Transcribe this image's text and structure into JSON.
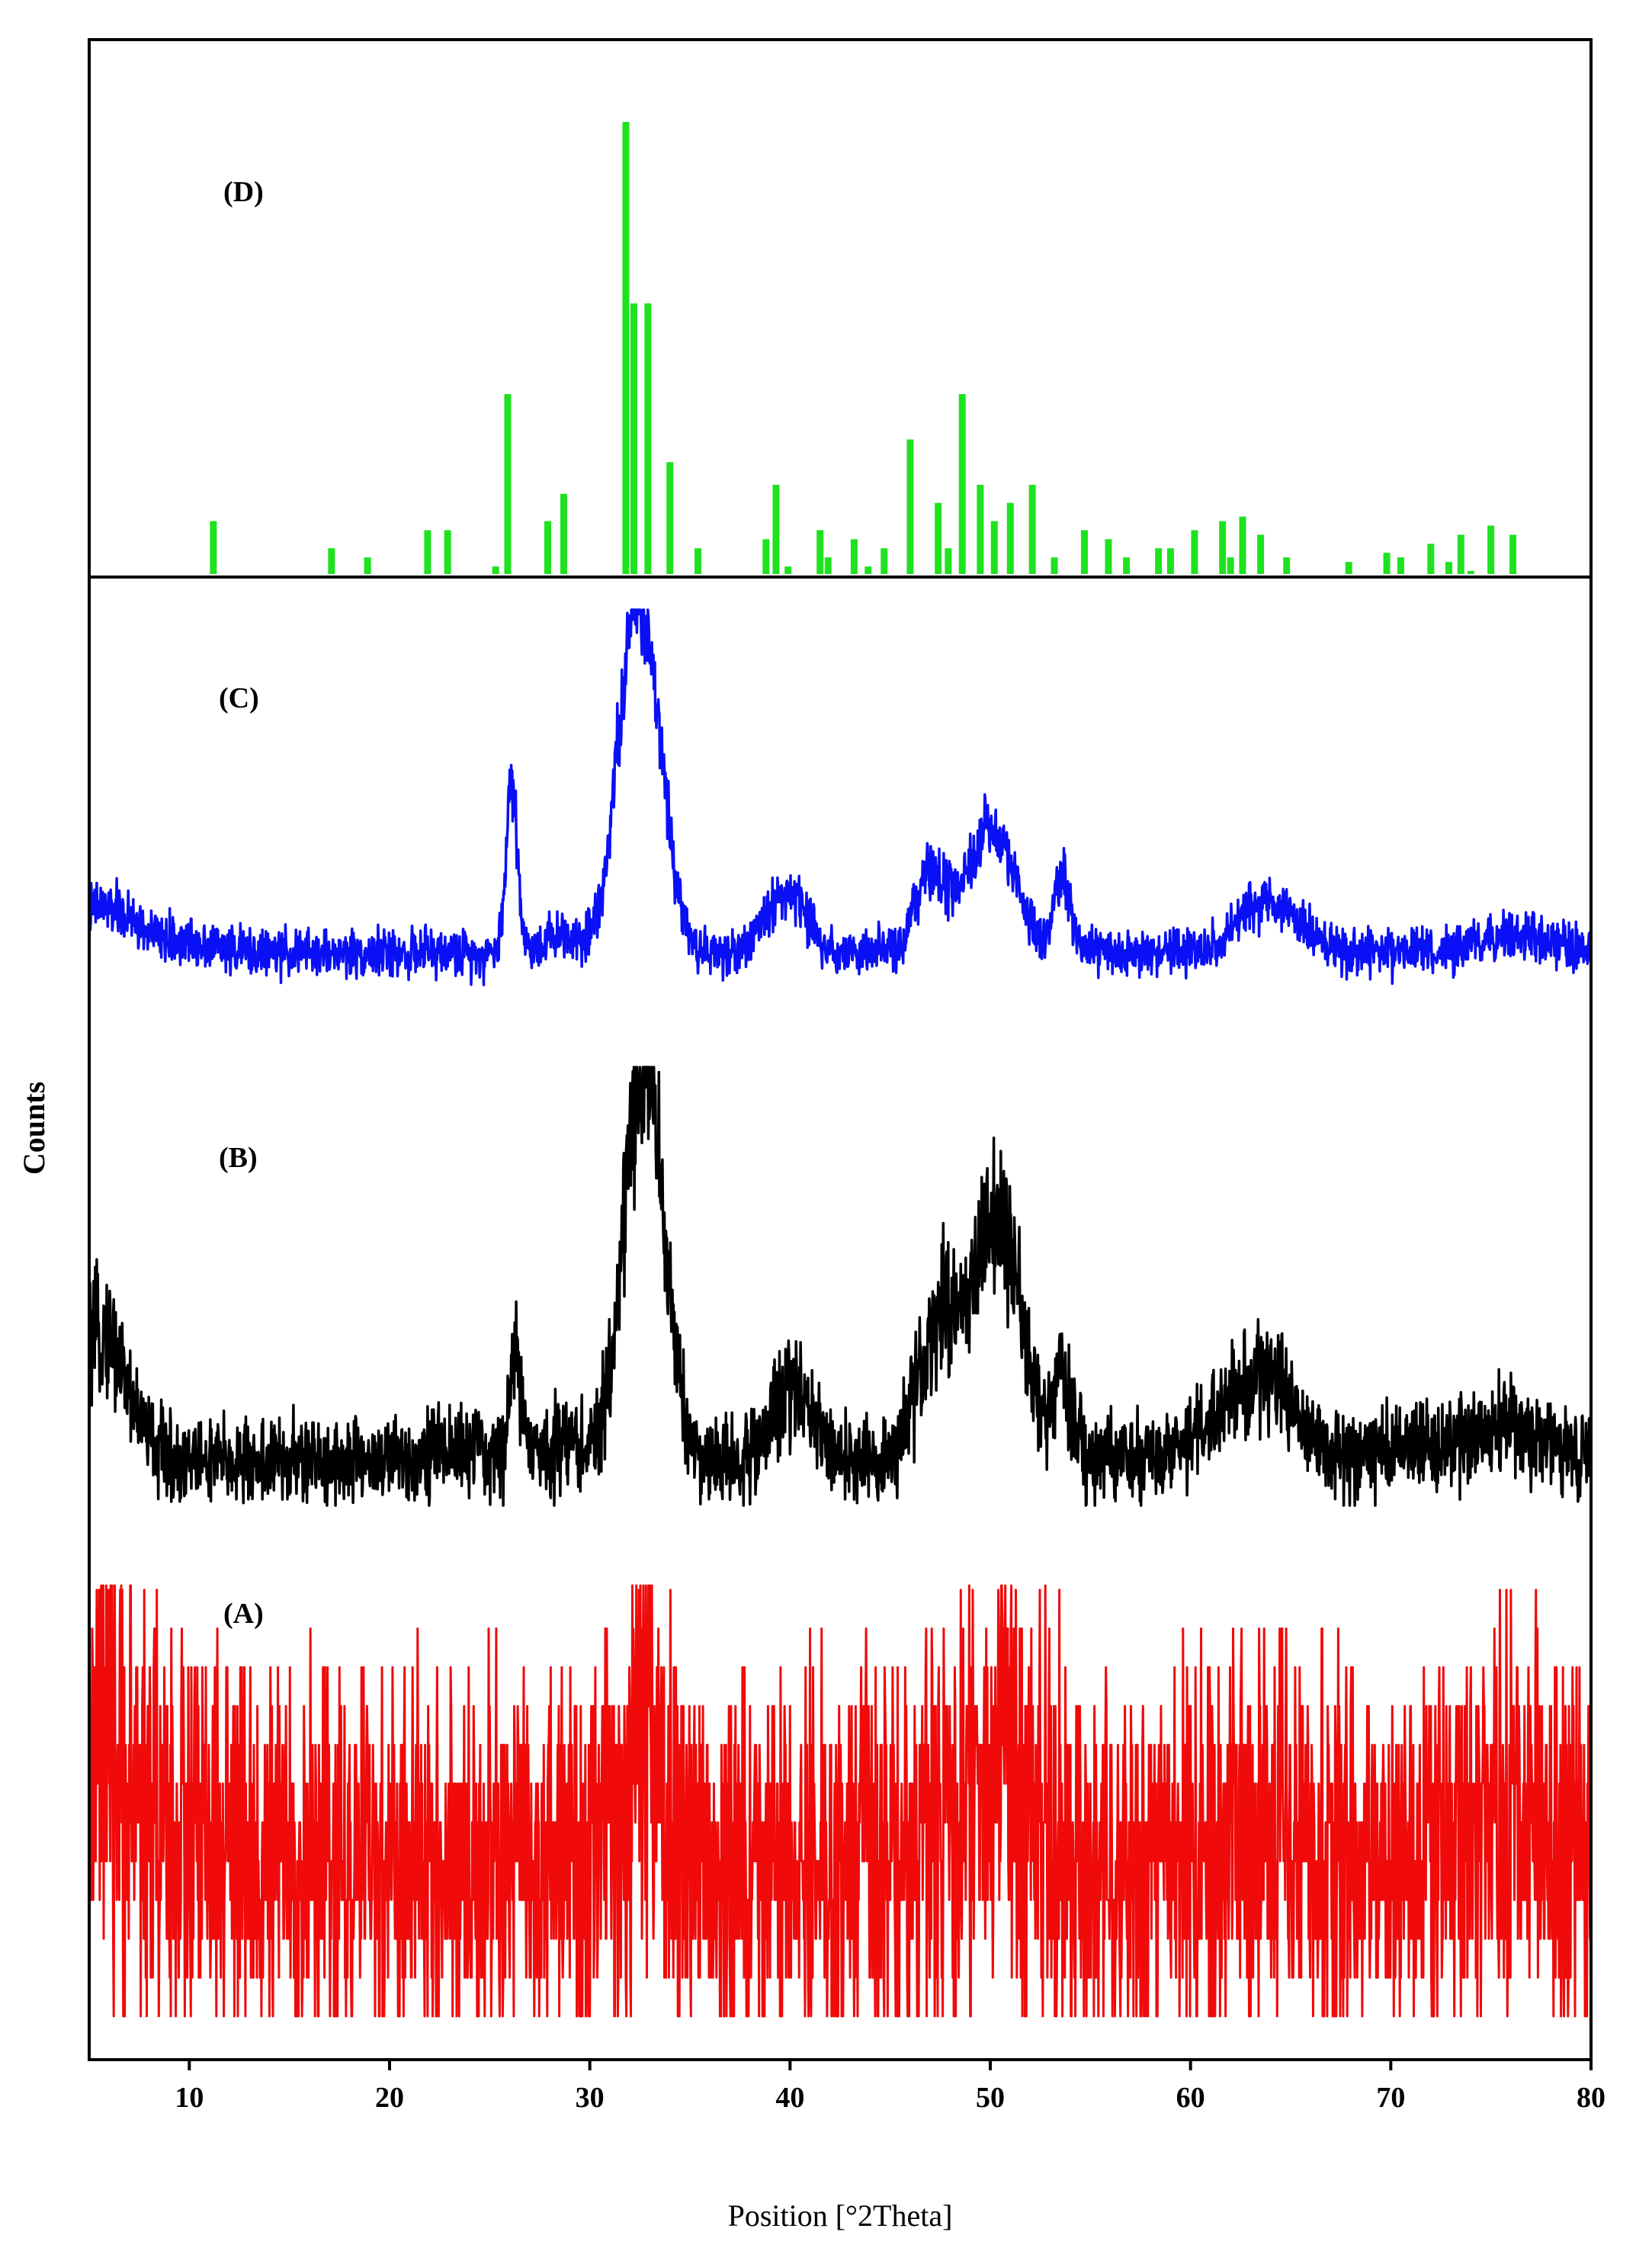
{
  "chart_data": {
    "type": "line",
    "xlabel": "Position [°2Theta]",
    "ylabel": "Counts",
    "xlim": [
      5,
      80
    ],
    "xticks": [
      10,
      20,
      30,
      40,
      50,
      60,
      70,
      80
    ],
    "grid": false,
    "legend": "none",
    "panels": [
      {
        "label": "(D)",
        "kind": "stick",
        "color": "#1fe21f",
        "ylim": [
          0,
          100
        ],
        "sticks": [
          {
            "x": 11.2,
            "y": 12
          },
          {
            "x": 17.1,
            "y": 6
          },
          {
            "x": 18.9,
            "y": 4
          },
          {
            "x": 21.9,
            "y": 10
          },
          {
            "x": 22.9,
            "y": 10
          },
          {
            "x": 25.3,
            "y": 2
          },
          {
            "x": 25.9,
            "y": 40
          },
          {
            "x": 27.9,
            "y": 12
          },
          {
            "x": 28.7,
            "y": 18
          },
          {
            "x": 31.8,
            "y": 100
          },
          {
            "x": 32.2,
            "y": 60
          },
          {
            "x": 32.9,
            "y": 60
          },
          {
            "x": 34.0,
            "y": 25
          },
          {
            "x": 35.4,
            "y": 6
          },
          {
            "x": 38.8,
            "y": 8
          },
          {
            "x": 39.3,
            "y": 20
          },
          {
            "x": 39.9,
            "y": 2
          },
          {
            "x": 41.5,
            "y": 10
          },
          {
            "x": 41.9,
            "y": 4
          },
          {
            "x": 43.2,
            "y": 8
          },
          {
            "x": 43.9,
            "y": 2
          },
          {
            "x": 44.7,
            "y": 6
          },
          {
            "x": 46.0,
            "y": 30
          },
          {
            "x": 47.4,
            "y": 16
          },
          {
            "x": 47.9,
            "y": 6
          },
          {
            "x": 48.6,
            "y": 40
          },
          {
            "x": 49.5,
            "y": 20
          },
          {
            "x": 50.2,
            "y": 12
          },
          {
            "x": 51.0,
            "y": 16
          },
          {
            "x": 52.1,
            "y": 20
          },
          {
            "x": 53.2,
            "y": 4
          },
          {
            "x": 54.7,
            "y": 10
          },
          {
            "x": 55.9,
            "y": 8
          },
          {
            "x": 56.8,
            "y": 4
          },
          {
            "x": 58.4,
            "y": 6
          },
          {
            "x": 59.0,
            "y": 6
          },
          {
            "x": 60.2,
            "y": 10
          },
          {
            "x": 61.6,
            "y": 12
          },
          {
            "x": 62.0,
            "y": 4
          },
          {
            "x": 62.6,
            "y": 13
          },
          {
            "x": 63.5,
            "y": 9
          },
          {
            "x": 64.8,
            "y": 4
          },
          {
            "x": 67.9,
            "y": 3
          },
          {
            "x": 69.8,
            "y": 5
          },
          {
            "x": 70.5,
            "y": 4
          },
          {
            "x": 72.0,
            "y": 7
          },
          {
            "x": 72.9,
            "y": 3
          },
          {
            "x": 73.5,
            "y": 9
          },
          {
            "x": 74.0,
            "y": 1
          },
          {
            "x": 75.0,
            "y": 11
          },
          {
            "x": 76.1,
            "y": 9
          }
        ]
      },
      {
        "label": "(C)",
        "kind": "pattern",
        "color": "#0a10f5",
        "ylim": [
          0,
          100
        ],
        "baseline": 10,
        "noise": 3,
        "peaks": [
          {
            "x": 5.6,
            "h": 12,
            "w": 1.8
          },
          {
            "x": 10.5,
            "h": 2.5,
            "w": 1.2
          },
          {
            "x": 26.1,
            "h": 45,
            "w": 0.28
          },
          {
            "x": 28.6,
            "h": 5,
            "w": 0.9
          },
          {
            "x": 32.3,
            "h": 85,
            "w": 0.95
          },
          {
            "x": 33.5,
            "h": 20,
            "w": 0.8
          },
          {
            "x": 39.8,
            "h": 16,
            "w": 1.0
          },
          {
            "x": 46.9,
            "h": 18,
            "w": 0.7
          },
          {
            "x": 48.0,
            "h": 8,
            "w": 0.8
          },
          {
            "x": 49.7,
            "h": 26,
            "w": 0.8
          },
          {
            "x": 51.0,
            "h": 17,
            "w": 0.8
          },
          {
            "x": 53.6,
            "h": 21,
            "w": 0.4
          },
          {
            "x": 64.0,
            "h": 14,
            "w": 1.4
          },
          {
            "x": 76.3,
            "h": 4,
            "w": 2.0
          }
        ]
      },
      {
        "label": "(B)",
        "kind": "pattern",
        "color": "#000000",
        "ylim": [
          0,
          100
        ],
        "baseline": 10,
        "noise": 5,
        "peaks": [
          {
            "x": 5.5,
            "h": 22,
            "w": 1.0
          },
          {
            "x": 6.5,
            "h": 10,
            "w": 1.2
          },
          {
            "x": 23.0,
            "h": 3,
            "w": 1.5
          },
          {
            "x": 26.3,
            "h": 24,
            "w": 0.3
          },
          {
            "x": 28.7,
            "h": 5,
            "w": 0.9
          },
          {
            "x": 32.5,
            "h": 82,
            "w": 0.9
          },
          {
            "x": 33.6,
            "h": 22,
            "w": 0.8
          },
          {
            "x": 40.2,
            "h": 18,
            "w": 1.0
          },
          {
            "x": 47.2,
            "h": 26,
            "w": 0.9
          },
          {
            "x": 48.5,
            "h": 18,
            "w": 0.9
          },
          {
            "x": 50.0,
            "h": 38,
            "w": 0.9
          },
          {
            "x": 51.2,
            "h": 26,
            "w": 0.9
          },
          {
            "x": 53.6,
            "h": 18,
            "w": 0.5
          },
          {
            "x": 61.5,
            "h": 8,
            "w": 1.5
          },
          {
            "x": 64.0,
            "h": 18,
            "w": 1.4
          },
          {
            "x": 71.0,
            "h": 3,
            "w": 2.0
          },
          {
            "x": 76.3,
            "h": 7,
            "w": 2.0
          }
        ]
      },
      {
        "label": "(A)",
        "kind": "pattern",
        "color": "#f00a0a",
        "ylim": [
          0,
          100
        ],
        "baseline": 35,
        "noise": 22,
        "quantize": 9,
        "peaks": [
          {
            "x": 5.5,
            "h": 18,
            "w": 1.5
          },
          {
            "x": 8.0,
            "h": 10,
            "w": 2.0
          },
          {
            "x": 32.5,
            "h": 25,
            "w": 1.0
          },
          {
            "x": 49.5,
            "h": 14,
            "w": 2.0
          },
          {
            "x": 51.0,
            "h": 12,
            "w": 1.0
          },
          {
            "x": 64.0,
            "h": 10,
            "w": 1.5
          },
          {
            "x": 76.0,
            "h": 10,
            "w": 2.5
          }
        ]
      }
    ]
  }
}
